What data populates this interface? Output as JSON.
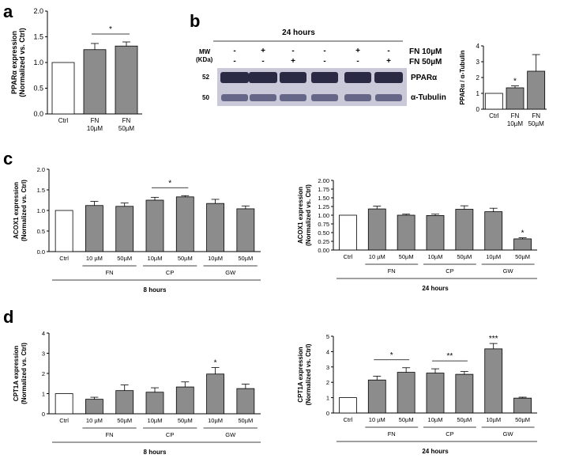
{
  "panels": {
    "a": "a",
    "b": "b",
    "c": "c",
    "d": "d"
  },
  "blot": {
    "time": "24 hours",
    "mw_label": "MW",
    "kda_label": "(KDa)",
    "row_fn10_label": "FN 10µM",
    "row_fn50_label": "FN 50µM",
    "row_fn10": [
      "-",
      "+",
      "-",
      "-",
      "+",
      "-"
    ],
    "row_fn50": [
      "-",
      "-",
      "+",
      "-",
      "-",
      "+"
    ],
    "bands": [
      {
        "mw": "52",
        "protein": "PPARα"
      },
      {
        "mw": "50",
        "protein": "α-Tubulin"
      }
    ]
  },
  "colors": {
    "ctrl_fill": "#ffffff",
    "bar_fill": "#8c8c8c",
    "blot_background": "#c9c9d9",
    "band_dark": "#2a2a44",
    "band_tubulin": "#55557a"
  },
  "chart_data": [
    {
      "id": "a",
      "type": "bar",
      "categories": [
        "Ctrl",
        "FN\n10µM",
        "FN\n50µM"
      ],
      "values": [
        1.0,
        1.25,
        1.32
      ],
      "errors": [
        0.0,
        0.12,
        0.08
      ],
      "ylabel": "PPARα expression\n(Normalized vs. Ctrl)",
      "ylim": [
        0,
        2.0
      ],
      "yticks": [
        0.0,
        0.5,
        1.0,
        1.5,
        2.0
      ],
      "significance": [
        {
          "from": 1,
          "to": 2,
          "label": "*"
        }
      ]
    },
    {
      "id": "b",
      "type": "bar",
      "categories": [
        "Ctrl",
        "FN\n10µM",
        "FN\n50µM"
      ],
      "values": [
        1.0,
        1.35,
        2.4
      ],
      "errors": [
        0.0,
        0.12,
        1.05
      ],
      "ylabel": "PPARα / α-Tubulin",
      "ylim": [
        0,
        4
      ],
      "yticks": [
        0,
        1,
        2,
        3,
        4
      ],
      "markers": [
        {
          "index": 1,
          "label": "*"
        }
      ]
    },
    {
      "id": "c-8h",
      "type": "bar",
      "categories": [
        "Ctrl",
        "10 µM",
        "50µM",
        "10µM",
        "50µM",
        "10µM",
        "50µM"
      ],
      "values": [
        1.0,
        1.12,
        1.1,
        1.25,
        1.33,
        1.17,
        1.04
      ],
      "errors": [
        0.0,
        0.1,
        0.08,
        0.07,
        0.03,
        0.1,
        0.07
      ],
      "ylabel": "ACOX1 expression\n(Normalized vs. Ctrl)",
      "ylim": [
        0,
        2.0
      ],
      "yticks": [
        0.0,
        0.5,
        1.0,
        1.5,
        2.0
      ],
      "groups": [
        {
          "label": "FN",
          "from": 1,
          "to": 2
        },
        {
          "label": "CP",
          "from": 3,
          "to": 4
        },
        {
          "label": "GW",
          "from": 5,
          "to": 6
        }
      ],
      "time": "8 hours",
      "significance": [
        {
          "from": 3,
          "to": 4,
          "label": "*"
        }
      ]
    },
    {
      "id": "c-24h",
      "type": "bar",
      "categories": [
        "Ctrl",
        "10 µM",
        "50µM",
        "10µM",
        "50µM",
        "10µM",
        "50µM"
      ],
      "values": [
        1.0,
        1.18,
        1.0,
        0.99,
        1.17,
        1.1,
        0.32
      ],
      "errors": [
        0.0,
        0.08,
        0.03,
        0.04,
        0.1,
        0.1,
        0.03
      ],
      "ylabel": "ACOX1 expression\n(Normalized vs. Ctrl)",
      "ylim": [
        0,
        2.0
      ],
      "yticks": [
        0.0,
        0.25,
        0.5,
        0.75,
        1.0,
        1.25,
        1.5,
        1.75,
        2.0
      ],
      "groups": [
        {
          "label": "FN",
          "from": 1,
          "to": 2
        },
        {
          "label": "CP",
          "from": 3,
          "to": 4
        },
        {
          "label": "GW",
          "from": 5,
          "to": 6
        }
      ],
      "time": "24 hours",
      "markers": [
        {
          "index": 6,
          "label": "*"
        }
      ]
    },
    {
      "id": "d-8h",
      "type": "bar",
      "categories": [
        "Ctrl",
        "10 µM",
        "50µM",
        "10µM",
        "50µM",
        "10µM",
        "50µM"
      ],
      "values": [
        1.0,
        0.72,
        1.15,
        1.07,
        1.33,
        1.97,
        1.25
      ],
      "errors": [
        0.0,
        0.1,
        0.28,
        0.22,
        0.25,
        0.32,
        0.22
      ],
      "ylabel": "CPT1A expression\n(Normalized vs. Ctrl)",
      "ylim": [
        0,
        4
      ],
      "yticks": [
        0,
        1,
        2,
        3,
        4
      ],
      "groups": [
        {
          "label": "FN",
          "from": 1,
          "to": 2
        },
        {
          "label": "CP",
          "from": 3,
          "to": 4
        },
        {
          "label": "GW",
          "from": 5,
          "to": 6
        }
      ],
      "time": "8 hours",
      "markers": [
        {
          "index": 5,
          "label": "*"
        }
      ]
    },
    {
      "id": "d-24h",
      "type": "bar",
      "categories": [
        "Ctrl",
        "10 µM",
        "50µM",
        "10µM",
        "50µM",
        "10µM",
        "50µM"
      ],
      "values": [
        1.0,
        2.15,
        2.65,
        2.6,
        2.52,
        4.18,
        0.97
      ],
      "errors": [
        0.0,
        0.25,
        0.3,
        0.28,
        0.18,
        0.35,
        0.06
      ],
      "ylabel": "CPT1A expression\n(Normalized vs. Ctrl)",
      "ylim": [
        0,
        5
      ],
      "yticks": [
        0,
        1,
        2,
        3,
        4,
        5
      ],
      "groups": [
        {
          "label": "FN",
          "from": 1,
          "to": 2
        },
        {
          "label": "CP",
          "from": 3,
          "to": 4
        },
        {
          "label": "GW",
          "from": 5,
          "to": 6
        }
      ],
      "time": "24 hours",
      "significance": [
        {
          "from": 1,
          "to": 2,
          "label": "*"
        },
        {
          "from": 3,
          "to": 4,
          "label": "**"
        }
      ],
      "markers": [
        {
          "index": 5,
          "label": "***"
        }
      ]
    }
  ]
}
